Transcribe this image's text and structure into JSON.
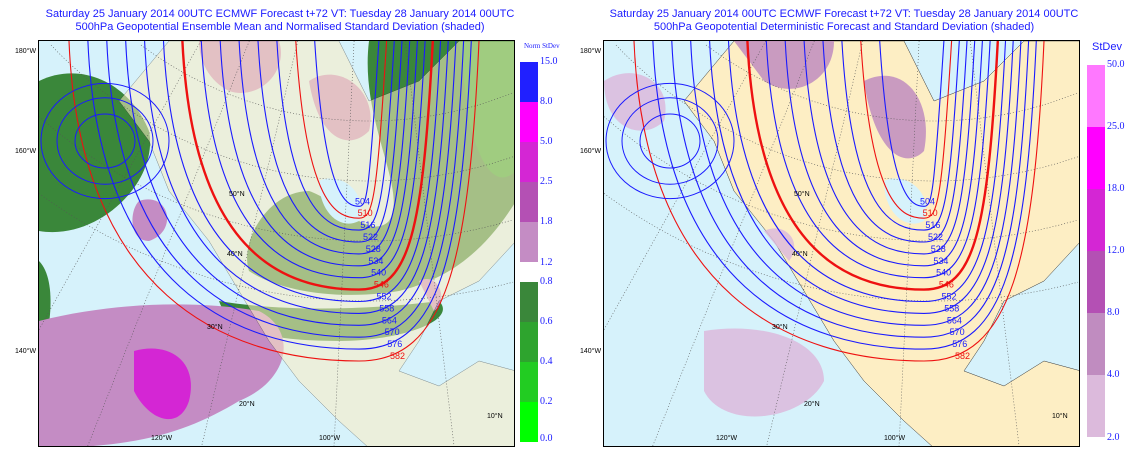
{
  "left": {
    "title1": "Saturday 25 January 2014 00UTC ECMWF Forecast t+72  VT: Tuesday 28 January 2014 00UTC",
    "title2": "500hPa Geopotential Ensemble Mean and Normalised Standard Deviation (shaded)",
    "legend_title": "Norm StDev",
    "legend_upper": [
      {
        "from": "15.0",
        "to": "8.0",
        "color": "#2020ff"
      },
      {
        "from": "8.0",
        "to": "5.0",
        "color": "#ff00ff"
      },
      {
        "from": "5.0",
        "to": "2.5",
        "color": "#d426d4"
      },
      {
        "from": "2.5",
        "to": "1.8",
        "color": "#b450b4"
      },
      {
        "from": "1.8",
        "to": "1.2",
        "color": "#c48cc4"
      }
    ],
    "legend_lower": [
      {
        "from": "0.8",
        "to": "0.6",
        "color": "#3a873a"
      },
      {
        "from": "0.6",
        "to": "0.4",
        "color": "#2ea42e"
      },
      {
        "from": "0.4",
        "to": "0.2",
        "color": "#22cc22"
      },
      {
        "from": "0.2",
        "to": "0.0",
        "color": "#00ff00"
      }
    ],
    "last_label": "1.2",
    "bottom_label": "0.0"
  },
  "right": {
    "title1": "Saturday 25 January 2014 00UTC ECMWF Forecast t+72  VT: Tuesday 28 January 2014 00UTC",
    "title2": "500hPa Geopotential Deterministic Forecast and Standard Deviation (shaded)",
    "legend_title": "StDev",
    "legend_upper": [
      {
        "from": "50.0",
        "to": "25.0",
        "color": "#ff78ff"
      },
      {
        "from": "25.0",
        "to": "18.0",
        "color": "#ff00ff"
      },
      {
        "from": "18.0",
        "to": "12.0",
        "color": "#d426d4"
      },
      {
        "from": "12.0",
        "to": "8.0",
        "color": "#b450b4"
      },
      {
        "from": "8.0",
        "to": "4.0",
        "color": "#c08cc0"
      },
      {
        "from": "4.0",
        "to": "2.0",
        "color": "#dcbadc"
      }
    ],
    "bottom_label": "2.0"
  },
  "graticule": {
    "lon": [
      "180°W",
      "160°W",
      "140°W",
      "120°W",
      "100°W"
    ],
    "lat": [
      "50°N",
      "40°N",
      "30°N",
      "20°N",
      "10°N"
    ]
  },
  "contours": {
    "levels": [
      504,
      510,
      516,
      522,
      528,
      534,
      540,
      546,
      552,
      558,
      564,
      570,
      576,
      582
    ],
    "red_levels": [
      510,
      546,
      582
    ],
    "thick_levels": [
      546
    ],
    "blue": "#1a1aff",
    "red": "#ee1111"
  },
  "colors": {
    "land": "#fdeec4",
    "sea": "#d6f2fb"
  }
}
